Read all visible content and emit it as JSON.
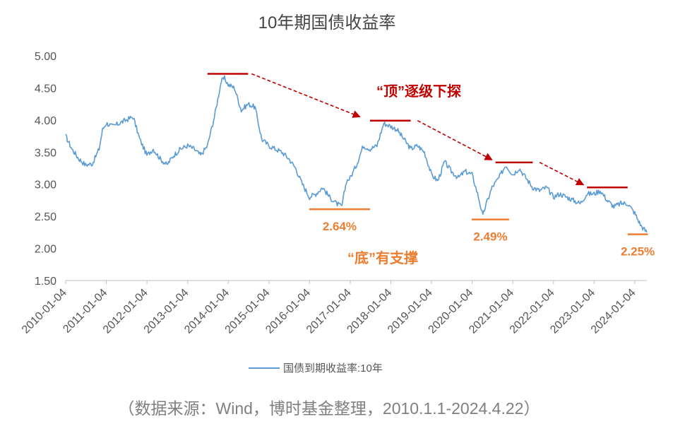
{
  "chart_data": {
    "type": "line",
    "title": "10年期国债收益率",
    "source": "（数据来源：Wind，博时基金整理，2010.1.1-2024.4.22）",
    "xlabel": "",
    "ylabel": "",
    "ylim": [
      1.5,
      5.0
    ],
    "y_ticks": [
      "1.50",
      "2.00",
      "2.50",
      "3.00",
      "3.50",
      "4.00",
      "4.50",
      "5.00"
    ],
    "x_tick_labels": [
      "2010-01-04",
      "2011-01-04",
      "2012-01-04",
      "2013-01-04",
      "2014-01-04",
      "2015-01-04",
      "2016-01-04",
      "2017-01-04",
      "2018-01-04",
      "2019-01-04",
      "2020-01-04",
      "2021-01-04",
      "2022-01-04",
      "2023-01-04",
      "2024-01-04"
    ],
    "x_range": [
      "2010-01-04",
      "2024-04-22"
    ],
    "grid": false,
    "legend_position": "bottom",
    "series": [
      {
        "name": "国债到期收益率:10年",
        "color": "#5B9BD5",
        "points": [
          [
            "2010-01-04",
            3.75
          ],
          [
            "2010-03-01",
            3.55
          ],
          [
            "2010-05-01",
            3.4
          ],
          [
            "2010-07-01",
            3.3
          ],
          [
            "2010-09-01",
            3.32
          ],
          [
            "2010-11-01",
            3.55
          ],
          [
            "2010-12-01",
            3.85
          ],
          [
            "2011-01-04",
            3.95
          ],
          [
            "2011-03-01",
            3.9
          ],
          [
            "2011-05-01",
            3.95
          ],
          [
            "2011-07-01",
            4.0
          ],
          [
            "2011-09-01",
            4.05
          ],
          [
            "2011-11-01",
            3.7
          ],
          [
            "2012-01-04",
            3.45
          ],
          [
            "2012-03-01",
            3.55
          ],
          [
            "2012-05-01",
            3.4
          ],
          [
            "2012-07-01",
            3.3
          ],
          [
            "2012-09-01",
            3.45
          ],
          [
            "2012-11-01",
            3.55
          ],
          [
            "2013-01-04",
            3.6
          ],
          [
            "2013-03-01",
            3.55
          ],
          [
            "2013-05-01",
            3.45
          ],
          [
            "2013-07-01",
            3.6
          ],
          [
            "2013-09-01",
            4.05
          ],
          [
            "2013-11-01",
            4.6
          ],
          [
            "2013-12-01",
            4.65
          ],
          [
            "2014-01-04",
            4.55
          ],
          [
            "2014-03-01",
            4.5
          ],
          [
            "2014-05-01",
            4.15
          ],
          [
            "2014-07-01",
            4.25
          ],
          [
            "2014-09-01",
            4.2
          ],
          [
            "2014-11-01",
            3.7
          ],
          [
            "2015-01-04",
            3.6
          ],
          [
            "2015-03-01",
            3.55
          ],
          [
            "2015-05-01",
            3.5
          ],
          [
            "2015-07-01",
            3.4
          ],
          [
            "2015-09-01",
            3.25
          ],
          [
            "2015-11-01",
            3.0
          ],
          [
            "2016-01-04",
            2.8
          ],
          [
            "2016-03-01",
            2.85
          ],
          [
            "2016-05-01",
            2.95
          ],
          [
            "2016-07-01",
            2.8
          ],
          [
            "2016-09-01",
            2.7
          ],
          [
            "2016-10-20",
            2.65
          ],
          [
            "2016-12-01",
            3.05
          ],
          [
            "2017-01-04",
            3.1
          ],
          [
            "2017-03-01",
            3.3
          ],
          [
            "2017-05-01",
            3.6
          ],
          [
            "2017-07-01",
            3.55
          ],
          [
            "2017-09-01",
            3.6
          ],
          [
            "2017-11-01",
            3.95
          ],
          [
            "2018-01-04",
            3.9
          ],
          [
            "2018-03-01",
            3.85
          ],
          [
            "2018-05-01",
            3.7
          ],
          [
            "2018-07-01",
            3.55
          ],
          [
            "2018-09-01",
            3.6
          ],
          [
            "2018-11-01",
            3.5
          ],
          [
            "2019-01-04",
            3.15
          ],
          [
            "2019-03-01",
            3.05
          ],
          [
            "2019-05-01",
            3.35
          ],
          [
            "2019-07-01",
            3.2
          ],
          [
            "2019-09-01",
            3.1
          ],
          [
            "2019-11-01",
            3.2
          ],
          [
            "2020-01-04",
            3.15
          ],
          [
            "2020-03-01",
            2.8
          ],
          [
            "2020-04-10",
            2.5
          ],
          [
            "2020-05-01",
            2.65
          ],
          [
            "2020-07-01",
            2.95
          ],
          [
            "2020-09-01",
            3.1
          ],
          [
            "2020-11-01",
            3.3
          ],
          [
            "2021-01-04",
            3.15
          ],
          [
            "2021-03-01",
            3.25
          ],
          [
            "2021-05-01",
            3.1
          ],
          [
            "2021-07-01",
            2.95
          ],
          [
            "2021-09-01",
            2.9
          ],
          [
            "2021-11-01",
            2.95
          ],
          [
            "2022-01-04",
            2.8
          ],
          [
            "2022-03-01",
            2.85
          ],
          [
            "2022-05-01",
            2.8
          ],
          [
            "2022-07-01",
            2.75
          ],
          [
            "2022-09-01",
            2.7
          ],
          [
            "2022-11-01",
            2.85
          ],
          [
            "2023-01-04",
            2.85
          ],
          [
            "2023-03-01",
            2.9
          ],
          [
            "2023-05-01",
            2.75
          ],
          [
            "2023-07-01",
            2.65
          ],
          [
            "2023-09-01",
            2.7
          ],
          [
            "2023-11-01",
            2.7
          ],
          [
            "2024-01-04",
            2.55
          ],
          [
            "2024-02-01",
            2.45
          ],
          [
            "2024-03-01",
            2.35
          ],
          [
            "2024-04-22",
            2.25
          ]
        ]
      }
    ],
    "annotations": {
      "top_label": "“顶”逐级下探",
      "bottom_label": "“底”有支撑",
      "top_color": "#C00000",
      "bottom_color": "#ED7D31",
      "tops": [
        {
          "start": "2013-07-01",
          "end": "2014-07-01",
          "y": 4.72
        },
        {
          "start": "2017-07-01",
          "end": "2018-07-01",
          "y": 3.99
        },
        {
          "start": "2020-08-01",
          "end": "2021-07-01",
          "y": 3.34
        },
        {
          "start": "2022-11-01",
          "end": "2023-11-01",
          "y": 2.95
        }
      ],
      "bottoms": [
        {
          "start": "2016-01-01",
          "end": "2017-07-01",
          "y": 2.61,
          "label": "2.64%"
        },
        {
          "start": "2020-01-01",
          "end": "2020-12-01",
          "y": 2.45,
          "label": "2.49%"
        },
        {
          "start": "2023-11-01",
          "end": "2024-05-01",
          "y": 2.22,
          "label": "2.25%"
        }
      ],
      "arrows": [
        {
          "from_date": "2014-08-01",
          "from_y": 4.72,
          "to_date": "2017-04-01",
          "to_y": 4.05
        },
        {
          "from_date": "2018-09-01",
          "from_y": 3.99,
          "to_date": "2020-07-01",
          "to_y": 3.38
        },
        {
          "from_date": "2021-09-01",
          "from_y": 3.34,
          "to_date": "2022-10-01",
          "to_y": 2.99
        }
      ]
    }
  }
}
